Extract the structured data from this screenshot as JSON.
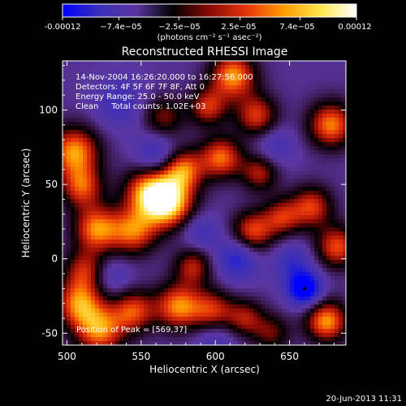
{
  "colorbar": {
    "tick_labels": [
      "-0.00012",
      "−7.4e−05",
      "−2.5e−05",
      "2.5e−05",
      "7.4e−05",
      "0.00012"
    ],
    "units_label": "(photons cm⁻² s⁻¹ asec⁻²)",
    "range": [
      -0.00012,
      0.00012
    ],
    "colors": [
      "#0000ff",
      "#3b2fb8",
      "#5a36a0",
      "#000000",
      "#8a0a05",
      "#e6330a",
      "#ff9a00",
      "#ffe64a",
      "#ffffff"
    ]
  },
  "chart_data": {
    "type": "heatmap",
    "title": "Reconstructed RHESSI Image",
    "xlabel": "Heliocentric X (arcsec)",
    "ylabel": "Heliocentric Y (arcsec)",
    "xlim": [
      497,
      688
    ],
    "ylim": [
      -58,
      133
    ],
    "x_ticks": [
      500,
      550,
      600,
      650
    ],
    "y_ticks": [
      -50,
      0,
      50,
      100
    ],
    "annotations": [
      "14-Nov-2004 16:26:20.000 to 16:27:56.000",
      "Detectors: 4F 5F 6F 7F 8F, Att 0",
      "Energy Range: 25.0 - 50.0 keV",
      "Clean     Total counts: 1.02E+03"
    ],
    "peak_label": "Position of Peak = [569,37]",
    "blobs": [
      {
        "x": 505,
        "y": 72,
        "v": 0.9,
        "s": 12
      },
      {
        "x": 510,
        "y": 48,
        "v": 0.7,
        "s": 10
      },
      {
        "x": 520,
        "y": 20,
        "v": 0.85,
        "s": 11
      },
      {
        "x": 512,
        "y": -8,
        "v": 0.6,
        "s": 10
      },
      {
        "x": 508,
        "y": -30,
        "v": 0.8,
        "s": 11
      },
      {
        "x": 522,
        "y": -48,
        "v": 0.85,
        "s": 12
      },
      {
        "x": 545,
        "y": 18,
        "v": 0.75,
        "s": 11
      },
      {
        "x": 555,
        "y": 45,
        "v": 0.85,
        "s": 12
      },
      {
        "x": 569,
        "y": 37,
        "v": 1.0,
        "s": 12
      },
      {
        "x": 578,
        "y": 60,
        "v": 0.8,
        "s": 10
      },
      {
        "x": 565,
        "y": 95,
        "v": 0.5,
        "s": 10
      },
      {
        "x": 595,
        "y": 102,
        "v": 0.65,
        "s": 9
      },
      {
        "x": 612,
        "y": 123,
        "v": 0.9,
        "s": 11
      },
      {
        "x": 628,
        "y": 96,
        "v": 0.7,
        "s": 10
      },
      {
        "x": 604,
        "y": 68,
        "v": 0.8,
        "s": 10
      },
      {
        "x": 630,
        "y": 58,
        "v": 0.6,
        "s": 9
      },
      {
        "x": 625,
        "y": 18,
        "v": 0.75,
        "s": 10
      },
      {
        "x": 645,
        "y": 28,
        "v": 0.6,
        "s": 9
      },
      {
        "x": 665,
        "y": 35,
        "v": 0.7,
        "s": 10
      },
      {
        "x": 678,
        "y": 90,
        "v": 0.85,
        "s": 11
      },
      {
        "x": 682,
        "y": 8,
        "v": 0.75,
        "s": 10
      },
      {
        "x": 675,
        "y": -42,
        "v": 0.9,
        "s": 10
      },
      {
        "x": 545,
        "y": -35,
        "v": 0.7,
        "s": 10
      },
      {
        "x": 575,
        "y": -32,
        "v": 0.85,
        "s": 11
      },
      {
        "x": 585,
        "y": -5,
        "v": 0.6,
        "s": 9
      },
      {
        "x": 598,
        "y": -35,
        "v": 0.65,
        "s": 10
      },
      {
        "x": 620,
        "y": -40,
        "v": 0.55,
        "s": 9
      },
      {
        "x": 638,
        "y": -50,
        "v": 0.45,
        "s": 9
      },
      {
        "x": 660,
        "y": -20,
        "v": -1.0,
        "s": 8
      },
      {
        "x": 652,
        "y": -2,
        "v": -0.4,
        "s": 9
      },
      {
        "x": 615,
        "y": 0,
        "v": -0.55,
        "s": 10
      },
      {
        "x": 560,
        "y": 70,
        "v": -0.45,
        "s": 10
      },
      {
        "x": 590,
        "y": 18,
        "v": -0.35,
        "s": 9
      },
      {
        "x": 535,
        "y": 105,
        "v": -0.35,
        "s": 12
      },
      {
        "x": 640,
        "y": 75,
        "v": -0.3,
        "s": 10
      },
      {
        "x": 530,
        "y": -12,
        "v": -0.3,
        "s": 9
      },
      {
        "x": 600,
        "y": -55,
        "v": -0.3,
        "s": 10
      }
    ]
  },
  "footer": {
    "timestamp": "20-Jun-2013 11:31"
  }
}
